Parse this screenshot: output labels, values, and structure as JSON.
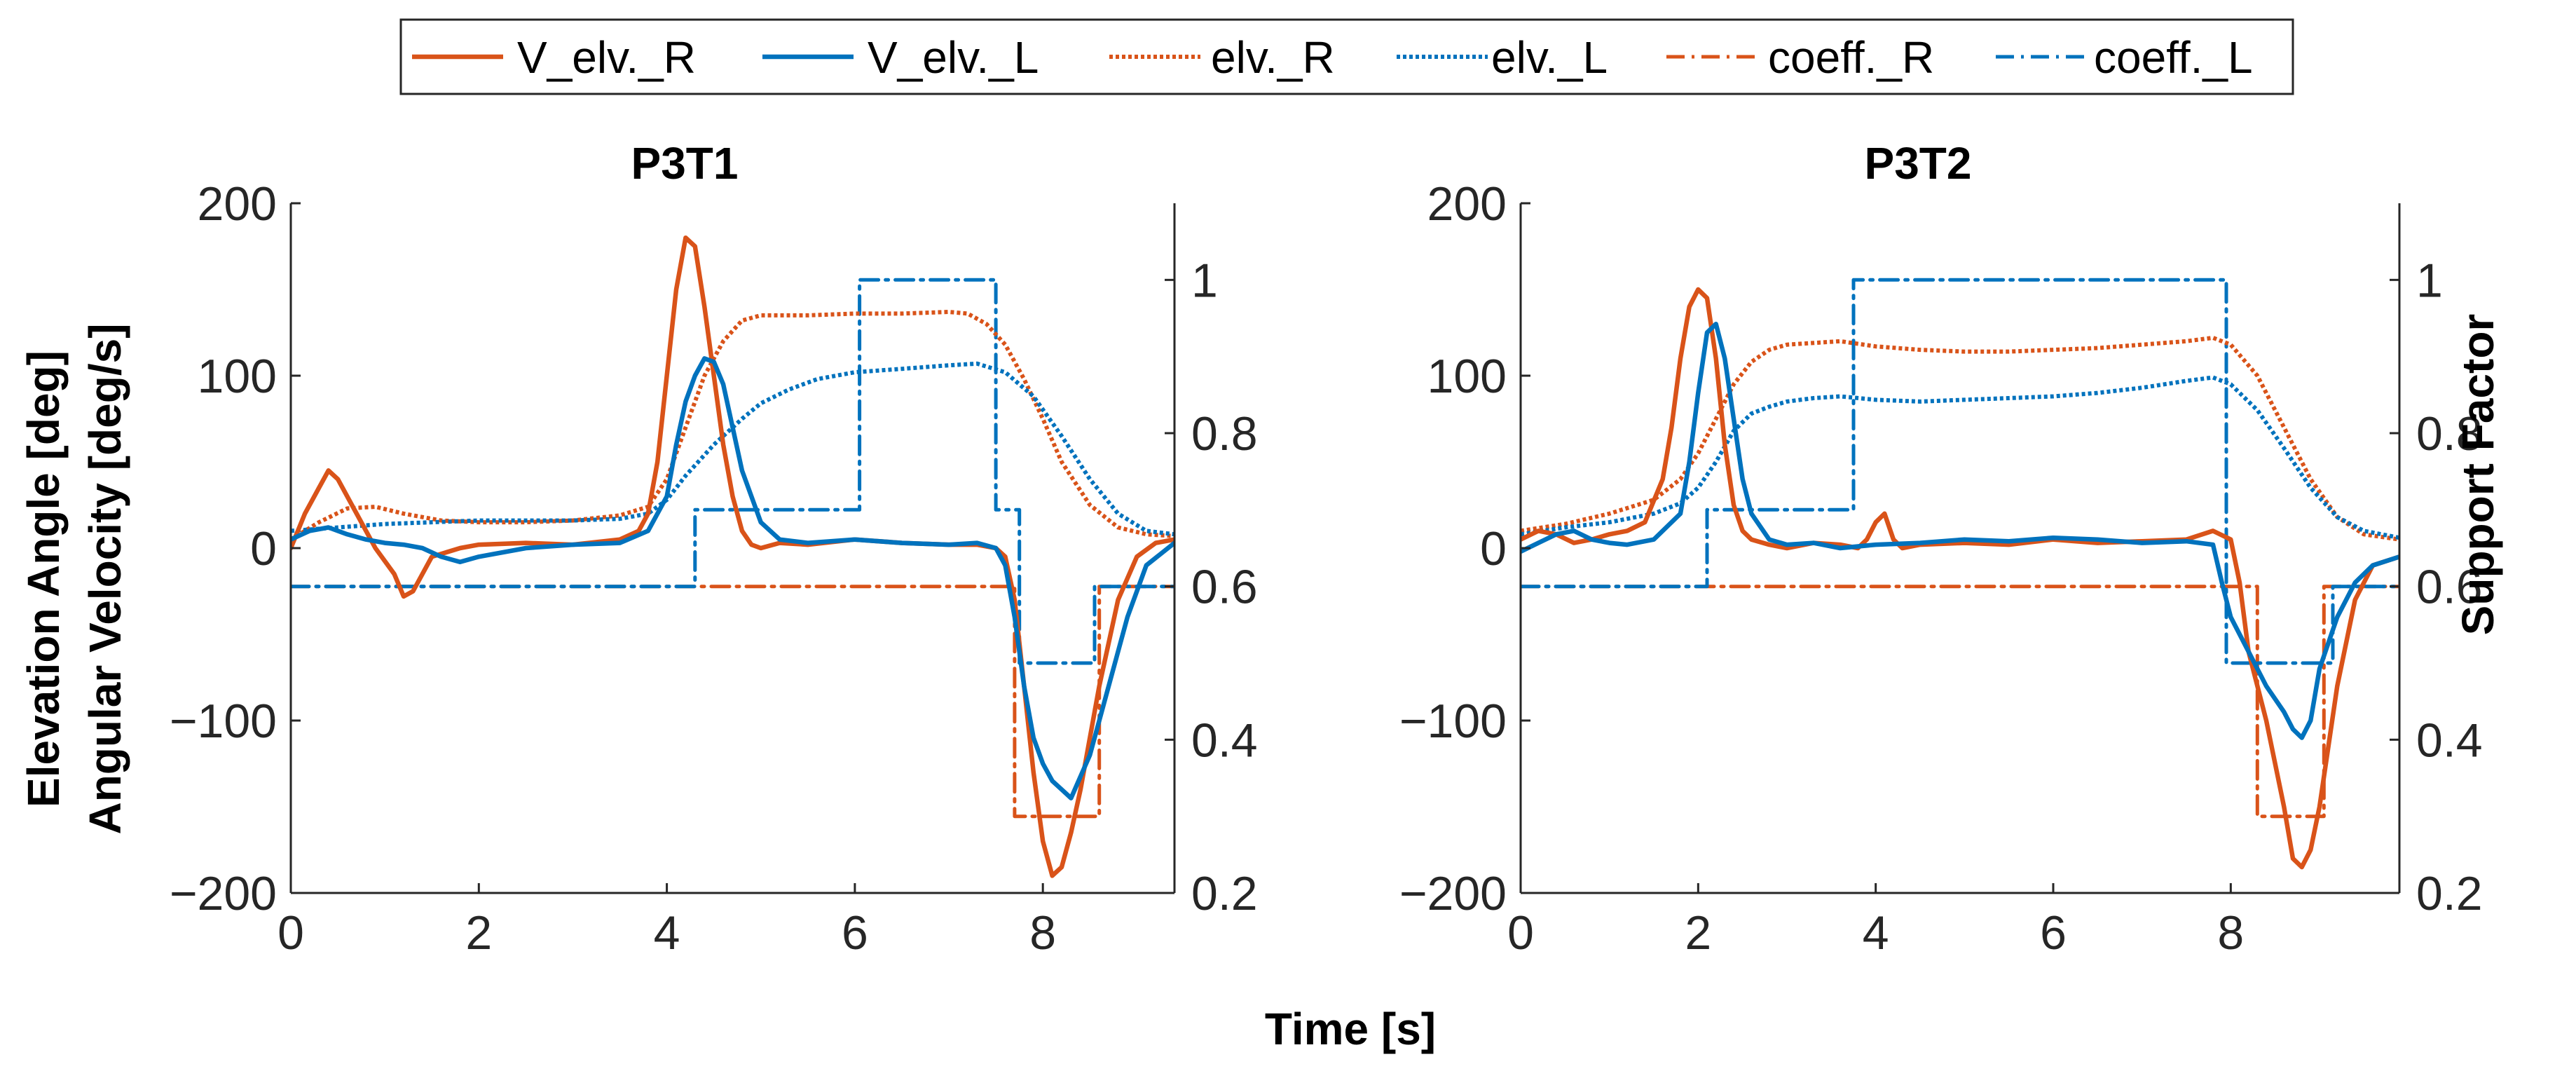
{
  "chart_data": {
    "type": "line",
    "shared_xlabel": "Time [s]",
    "ylabel_left": [
      "Elevation Angle [deg]",
      "Angular Velocity [deg/s]"
    ],
    "ylabel_right": "Support Factor",
    "legend": {
      "placement": "top-center",
      "entries": [
        {
          "name": "V_elv._R",
          "color": "#D95319",
          "style": "solid"
        },
        {
          "name": "V_elv._L",
          "color": "#0072BD",
          "style": "solid"
        },
        {
          "name": "elv._R",
          "color": "#D95319",
          "style": "dotted"
        },
        {
          "name": "elv._L",
          "color": "#0072BD",
          "style": "dotted"
        },
        {
          "name": "coeff._R",
          "color": "#D95319",
          "style": "dashdot"
        },
        {
          "name": "coeff._L",
          "color": "#0072BD",
          "style": "dashdot"
        }
      ]
    },
    "panels": [
      {
        "title": "P3T1",
        "xlim": [
          0,
          9.4
        ],
        "ylim_left": [
          -200,
          200
        ],
        "ylim_right": [
          0.2,
          1.1
        ],
        "xticks": [
          0,
          2,
          4,
          6,
          8
        ],
        "yticks_left": [
          -200,
          -100,
          0,
          100,
          200
        ],
        "yticks_left_labels": [
          "−200",
          "−100",
          "0",
          "100",
          "200"
        ],
        "yticks_right": [
          0.2,
          0.4,
          0.6,
          0.8,
          1
        ],
        "yticks_right_labels": [
          "0.2",
          "0.4",
          "0.6",
          "0.8",
          "1"
        ],
        "series": [
          {
            "name": "elv._R",
            "axis": "left",
            "x": [
              0,
              0.3,
              0.6,
              0.9,
              1.2,
              1.6,
              2,
              2.5,
              3,
              3.5,
              3.8,
              4,
              4.2,
              4.4,
              4.6,
              4.8,
              5,
              5.5,
              6,
              6.5,
              7,
              7.2,
              7.4,
              7.6,
              7.8,
              8,
              8.2,
              8.5,
              8.8,
              9.1,
              9.4
            ],
            "y": [
              5,
              15,
              23,
              24,
              20,
              16,
              15,
              15,
              16,
              19,
              24,
              40,
              70,
              100,
              120,
              132,
              135,
              135,
              136,
              136,
              137,
              136,
              130,
              118,
              98,
              75,
              50,
              25,
              12,
              8,
              7
            ]
          },
          {
            "name": "elv._L",
            "axis": "left",
            "x": [
              0,
              0.5,
              1,
              1.5,
              2,
              2.5,
              3,
              3.5,
              3.8,
              4,
              4.2,
              4.5,
              4.8,
              5,
              5.3,
              5.6,
              6,
              6.5,
              7,
              7.3,
              7.6,
              7.9,
              8.2,
              8.5,
              8.8,
              9.1,
              9.4
            ],
            "y": [
              10,
              12,
              14,
              15,
              16,
              16,
              16,
              17,
              20,
              28,
              42,
              60,
              75,
              84,
              92,
              98,
              102,
              104,
              106,
              107,
              102,
              88,
              65,
              40,
              20,
              10,
              8
            ]
          },
          {
            "name": "V_elv._R",
            "axis": "left",
            "x": [
              0,
              0.15,
              0.3,
              0.4,
              0.5,
              0.7,
              0.9,
              1.1,
              1.2,
              1.3,
              1.5,
              1.8,
              2,
              2.5,
              3,
              3.5,
              3.7,
              3.8,
              3.9,
              4,
              4.1,
              4.2,
              4.3,
              4.4,
              4.5,
              4.6,
              4.7,
              4.8,
              4.9,
              5,
              5.2,
              5.5,
              6,
              6.5,
              7,
              7.3,
              7.5,
              7.6,
              7.7,
              7.8,
              7.9,
              8,
              8.1,
              8.2,
              8.3,
              8.4,
              8.6,
              8.8,
              9,
              9.2,
              9.4
            ],
            "y": [
              0,
              20,
              35,
              45,
              40,
              20,
              0,
              -15,
              -28,
              -25,
              -5,
              0,
              2,
              3,
              2,
              5,
              10,
              20,
              50,
              100,
              150,
              180,
              175,
              140,
              100,
              60,
              30,
              10,
              2,
              0,
              3,
              2,
              5,
              3,
              2,
              2,
              0,
              -5,
              -30,
              -80,
              -130,
              -170,
              -190,
              -185,
              -165,
              -140,
              -80,
              -30,
              -5,
              3,
              5
            ]
          },
          {
            "name": "V_elv._L",
            "axis": "left",
            "x": [
              0,
              0.2,
              0.4,
              0.6,
              0.8,
              1,
              1.2,
              1.4,
              1.6,
              1.8,
              2,
              2.5,
              3,
              3.5,
              3.8,
              4,
              4.1,
              4.2,
              4.3,
              4.4,
              4.5,
              4.6,
              4.7,
              4.8,
              5,
              5.2,
              5.5,
              6,
              6.5,
              7,
              7.3,
              7.5,
              7.6,
              7.7,
              7.8,
              7.9,
              8,
              8.1,
              8.2,
              8.3,
              8.5,
              8.7,
              8.9,
              9.1,
              9.4
            ],
            "y": [
              5,
              10,
              12,
              8,
              5,
              3,
              2,
              0,
              -5,
              -8,
              -5,
              0,
              2,
              3,
              10,
              30,
              60,
              85,
              100,
              110,
              108,
              95,
              70,
              45,
              15,
              5,
              3,
              5,
              3,
              2,
              3,
              0,
              -10,
              -40,
              -80,
              -110,
              -125,
              -135,
              -140,
              -145,
              -120,
              -80,
              -40,
              -10,
              3
            ]
          },
          {
            "name": "coeff._R",
            "axis": "right",
            "step": true,
            "x": [
              0,
              4.3,
              4.3,
              7.7,
              7.7,
              8.6,
              8.6,
              9.4
            ],
            "y": [
              0.6,
              0.6,
              0.6,
              0.6,
              0.3,
              0.3,
              0.6,
              0.6
            ]
          },
          {
            "name": "coeff._L",
            "axis": "right",
            "step": true,
            "x": [
              0,
              4.3,
              4.3,
              6.05,
              6.05,
              7.5,
              7.5,
              7.75,
              7.75,
              8.55,
              8.55,
              9.4
            ],
            "y": [
              0.6,
              0.6,
              0.7,
              0.7,
              1.0,
              1.0,
              0.7,
              0.7,
              0.5,
              0.5,
              0.6,
              0.6
            ]
          }
        ]
      },
      {
        "title": "P3T2",
        "xlim": [
          0,
          9.9
        ],
        "ylim_left": [
          -200,
          200
        ],
        "ylim_right": [
          0.2,
          1.1
        ],
        "xticks": [
          0,
          2,
          4,
          6,
          8
        ],
        "yticks_left": [
          -200,
          -100,
          0,
          100,
          200
        ],
        "yticks_left_labels": [
          "−200",
          "−100",
          "0",
          "100",
          "200"
        ],
        "yticks_right": [
          0.2,
          0.4,
          0.6,
          0.8,
          1
        ],
        "yticks_right_labels": [
          "0.2",
          "0.4",
          "0.6",
          "0.8",
          "1"
        ],
        "series": [
          {
            "name": "elv._R",
            "axis": "left",
            "x": [
              0,
              0.5,
              1,
              1.5,
              1.8,
              2,
              2.2,
              2.4,
              2.6,
              2.8,
              3,
              3.3,
              3.6,
              4,
              4.5,
              5,
              5.5,
              6,
              6.5,
              7,
              7.5,
              7.8,
              8,
              8.3,
              8.6,
              8.9,
              9.2,
              9.5,
              9.9
            ],
            "y": [
              10,
              14,
              20,
              28,
              40,
              55,
              75,
              95,
              108,
              115,
              118,
              119,
              120,
              117,
              115,
              114,
              114,
              115,
              116,
              118,
              120,
              122,
              118,
              100,
              70,
              40,
              18,
              8,
              5
            ]
          },
          {
            "name": "elv._L",
            "axis": "left",
            "x": [
              0,
              0.5,
              1,
              1.5,
              1.8,
              2,
              2.2,
              2.4,
              2.6,
              2.8,
              3,
              3.3,
              3.6,
              4,
              4.5,
              5,
              5.5,
              6,
              6.5,
              7,
              7.5,
              7.8,
              8,
              8.3,
              8.6,
              8.9,
              9.2,
              9.5,
              9.9
            ],
            "y": [
              8,
              12,
              15,
              20,
              26,
              35,
              50,
              68,
              78,
              82,
              85,
              87,
              88,
              86,
              85,
              86,
              87,
              88,
              90,
              93,
              97,
              99,
              95,
              80,
              58,
              35,
              18,
              10,
              6
            ]
          },
          {
            "name": "V_elv._R",
            "axis": "left",
            "x": [
              0,
              0.2,
              0.4,
              0.6,
              0.8,
              1,
              1.2,
              1.4,
              1.6,
              1.7,
              1.8,
              1.9,
              2,
              2.1,
              2.2,
              2.3,
              2.4,
              2.5,
              2.6,
              2.8,
              3,
              3.3,
              3.6,
              3.8,
              3.9,
              4,
              4.1,
              4.2,
              4.3,
              4.5,
              5,
              5.5,
              6,
              6.5,
              7,
              7.5,
              7.8,
              8,
              8.1,
              8.2,
              8.4,
              8.6,
              8.7,
              8.8,
              8.9,
              9,
              9.2,
              9.4,
              9.6,
              9.9
            ],
            "y": [
              5,
              10,
              8,
              3,
              5,
              8,
              10,
              15,
              40,
              70,
              110,
              140,
              150,
              145,
              110,
              60,
              25,
              10,
              5,
              2,
              0,
              3,
              2,
              0,
              5,
              15,
              20,
              5,
              0,
              2,
              3,
              2,
              5,
              3,
              4,
              5,
              10,
              5,
              -20,
              -60,
              -100,
              -150,
              -180,
              -185,
              -175,
              -150,
              -80,
              -30,
              -10,
              -5
            ]
          },
          {
            "name": "V_elv._L",
            "axis": "left",
            "x": [
              0,
              0.2,
              0.4,
              0.6,
              0.8,
              1,
              1.2,
              1.5,
              1.8,
              1.9,
              2,
              2.1,
              2.2,
              2.3,
              2.4,
              2.5,
              2.6,
              2.8,
              3,
              3.3,
              3.6,
              4,
              4.5,
              5,
              5.5,
              6,
              6.5,
              7,
              7.5,
              7.8,
              7.9,
              8,
              8.1,
              8.2,
              8.4,
              8.6,
              8.7,
              8.8,
              8.9,
              9,
              9.2,
              9.4,
              9.6,
              9.9
            ],
            "y": [
              -2,
              3,
              8,
              10,
              5,
              3,
              2,
              5,
              20,
              50,
              90,
              125,
              130,
              110,
              75,
              40,
              20,
              5,
              2,
              3,
              0,
              2,
              3,
              5,
              4,
              6,
              5,
              3,
              4,
              2,
              -20,
              -40,
              -50,
              -60,
              -80,
              -95,
              -105,
              -110,
              -100,
              -70,
              -40,
              -20,
              -10,
              -5
            ]
          },
          {
            "name": "coeff._R",
            "axis": "right",
            "step": true,
            "x": [
              0,
              3.75,
              3.75,
              8.3,
              8.3,
              9.05,
              9.05,
              9.9
            ],
            "y": [
              0.6,
              0.6,
              0.6,
              0.6,
              0.3,
              0.3,
              0.6,
              0.6
            ]
          },
          {
            "name": "coeff._L",
            "axis": "right",
            "step": true,
            "x": [
              0,
              2.1,
              2.1,
              3.75,
              3.75,
              7.95,
              7.95,
              9.15,
              9.15,
              9.9
            ],
            "y": [
              0.6,
              0.6,
              0.7,
              0.7,
              1.0,
              1.0,
              0.5,
              0.5,
              0.6,
              0.6
            ]
          }
        ]
      }
    ]
  }
}
